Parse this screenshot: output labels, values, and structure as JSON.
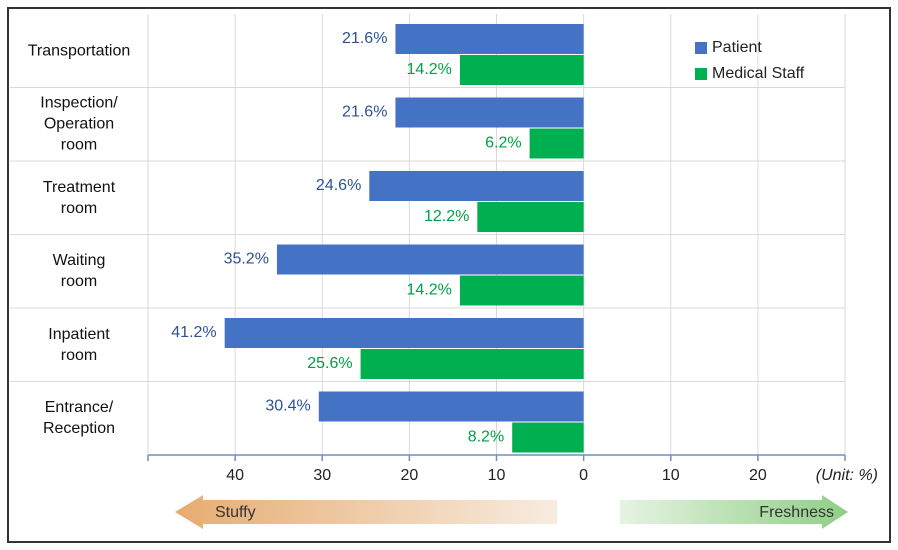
{
  "chart_data": {
    "type": "hbar",
    "categories": [
      "Transportation",
      "Inspection/\nOperation\nroom",
      "Treatment\nroom",
      "Waiting\nroom",
      "Inpatient\nroom",
      "Entrance/\nReception"
    ],
    "series": [
      {
        "name": "Patient",
        "color": "#4472c4",
        "label_color": "#2f528f",
        "values": [
          21.6,
          21.6,
          24.6,
          35.2,
          41.2,
          30.4
        ],
        "value_labels": [
          "21.6%",
          "21.6%",
          "24.6%",
          "35.2%",
          "41.2%",
          "30.4%"
        ]
      },
      {
        "name": "Medical Staff",
        "color": "#00b050",
        "label_color": "#00a046",
        "values": [
          14.2,
          6.2,
          12.2,
          14.2,
          25.6,
          8.2
        ],
        "value_labels": [
          "14.2%",
          "6.2%",
          "12.2%",
          "14.2%",
          "25.6%",
          "8.2%"
        ]
      }
    ],
    "xlim": [
      50,
      -30
    ],
    "xticks": [
      40,
      30,
      20,
      10,
      0,
      {
        "value": -10,
        "label": "10"
      },
      {
        "value": -20,
        "label": "20"
      }
    ],
    "grid": true,
    "legend": "upper right",
    "unit_label": "(Unit: %)",
    "left_arrow_label": "Stuffy",
    "right_arrow_label": "Freshness"
  }
}
